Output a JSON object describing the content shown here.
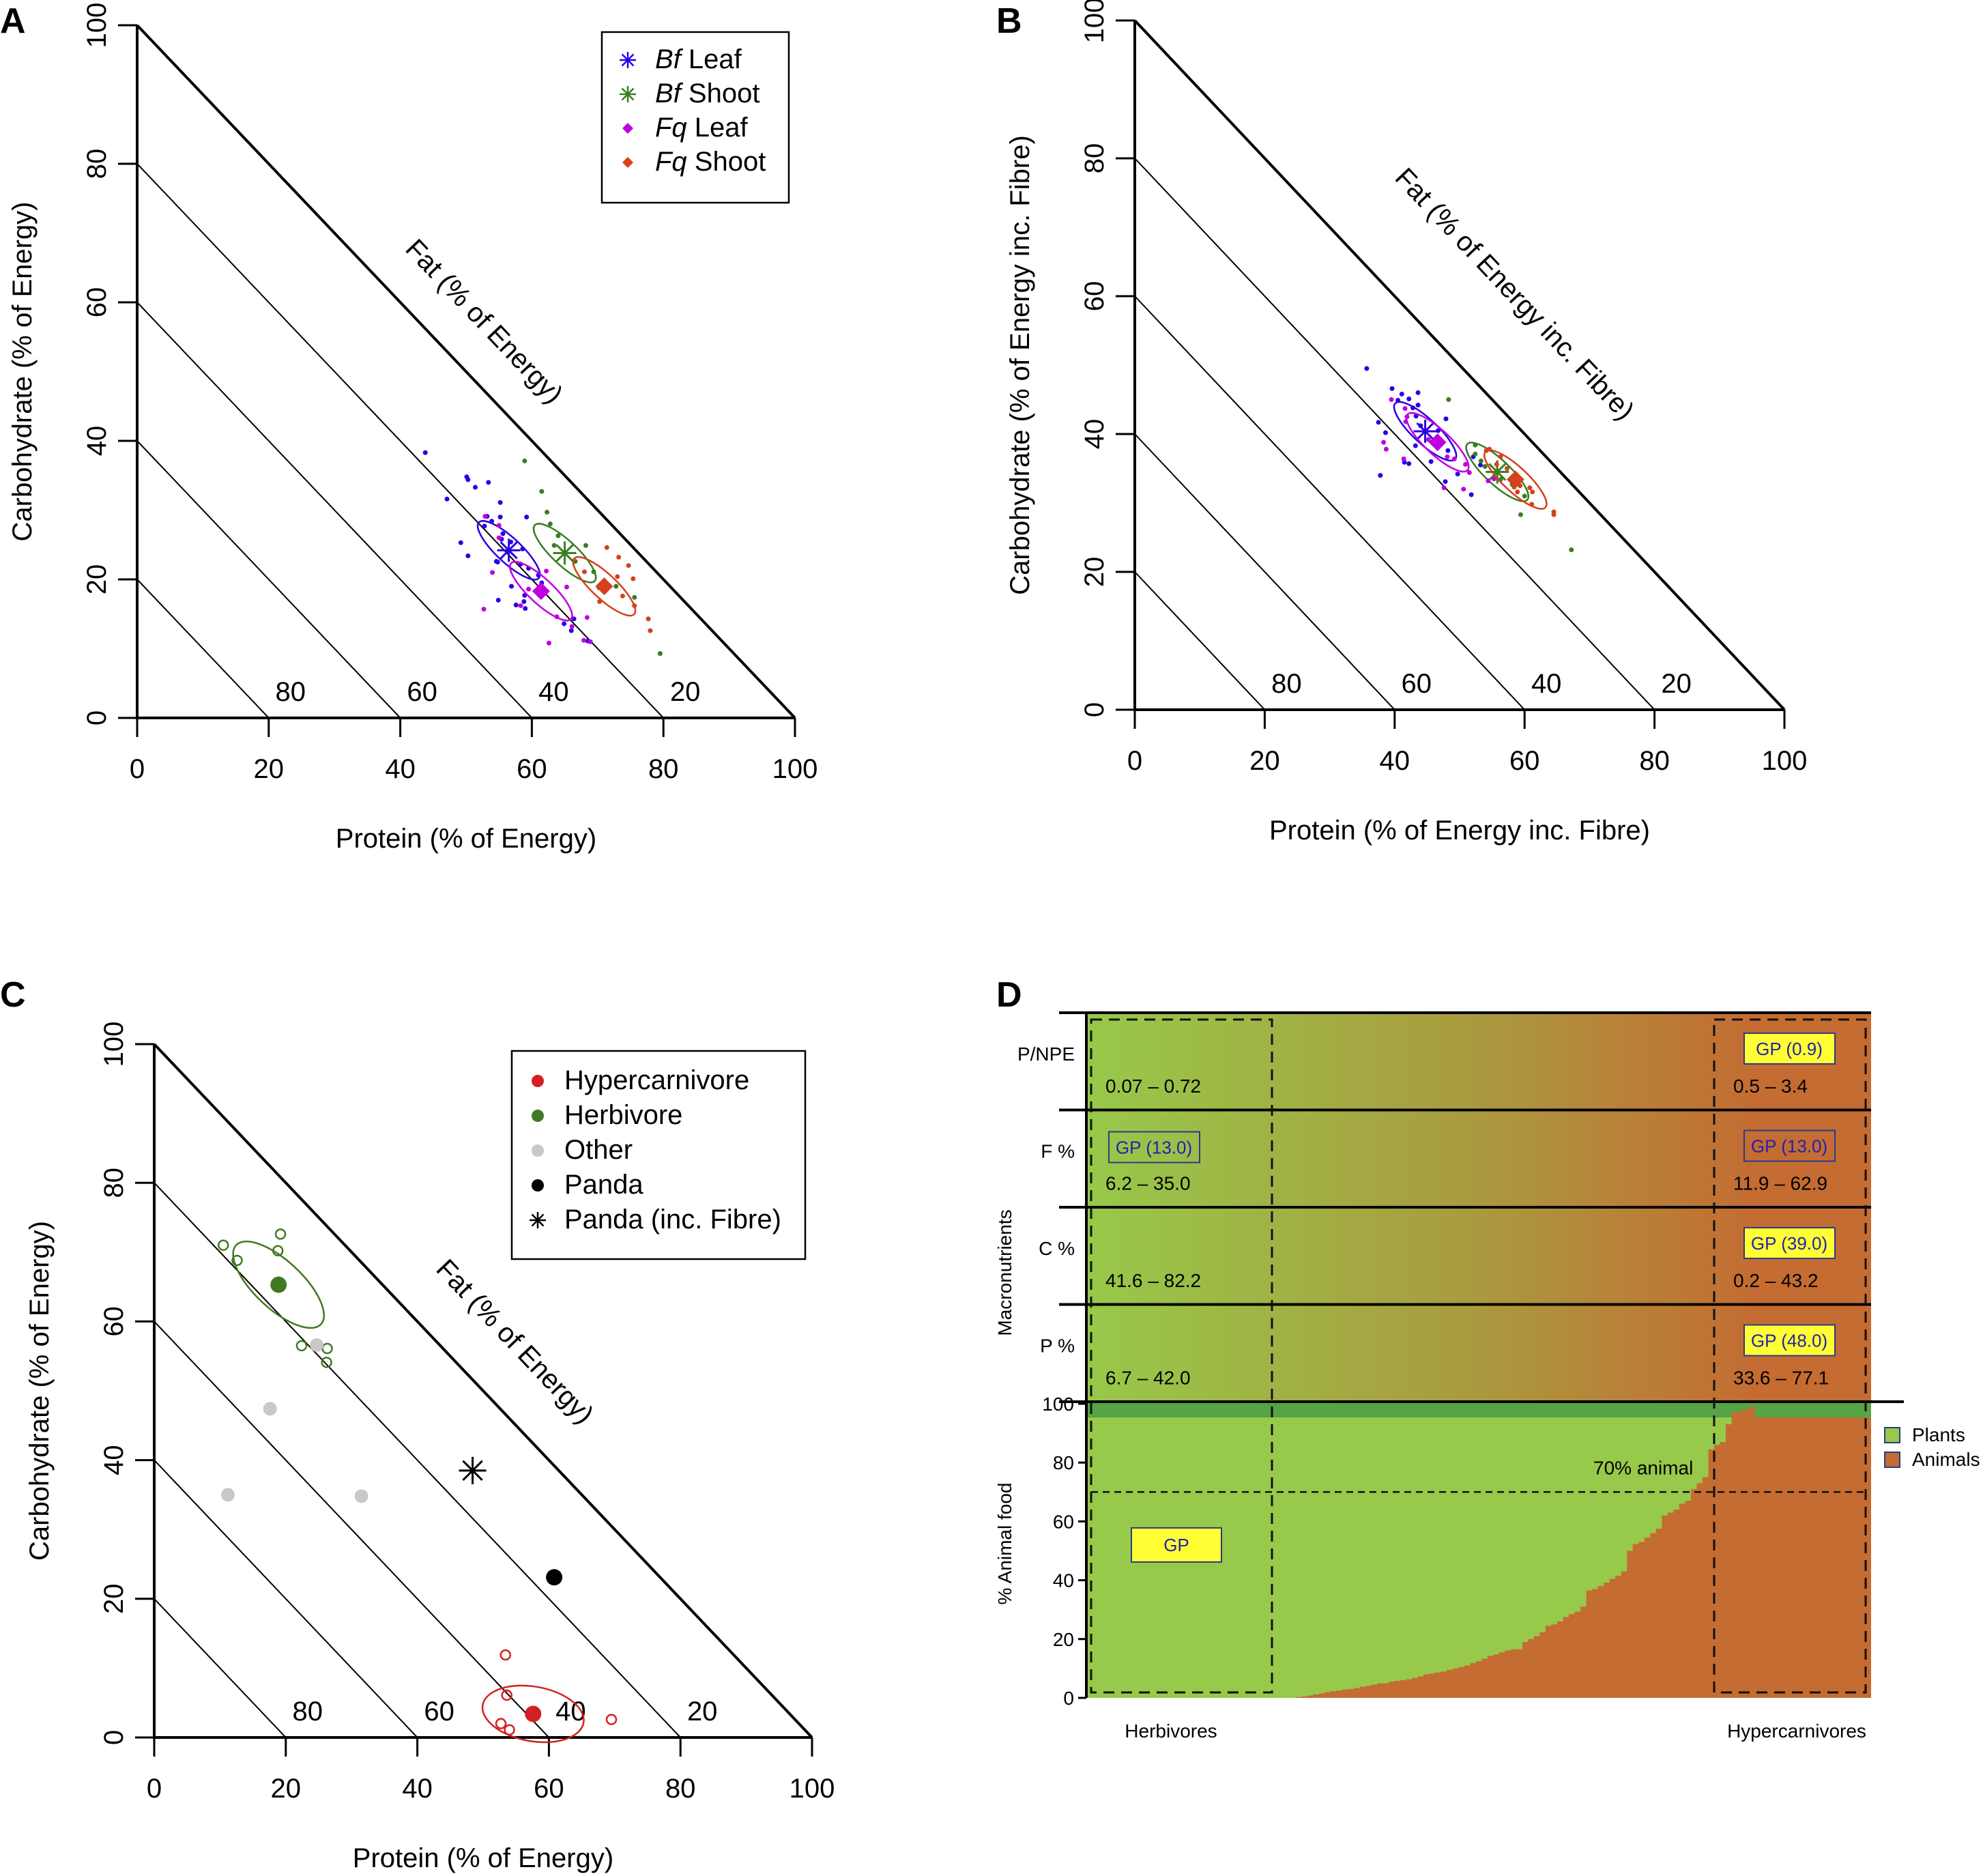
{
  "chart_data": [
    {
      "panel": "A",
      "type": "scatter",
      "subtype": "right-angled mixture triangle",
      "xlabel": "Protein (% of Energy)",
      "ylabel": "Carbohydrate (% of Energy)",
      "diag_label": "Fat (% of Energy)",
      "xlim": [
        0,
        100
      ],
      "ylim": [
        0,
        100
      ],
      "x_ticks": [
        "0",
        "20",
        "40",
        "60",
        "80",
        "100"
      ],
      "y_ticks": [
        "0",
        "20",
        "40",
        "60",
        "80",
        "100"
      ],
      "iso_labels": [
        "80",
        "60",
        "40",
        "20"
      ],
      "legend": {
        "position": "top-right",
        "entries": [
          {
            "italic": "Bf",
            "text": " Leaf",
            "marker": "asterisk",
            "color": "#2a00e6"
          },
          {
            "italic": "Bf",
            "text": " Shoot",
            "marker": "asterisk",
            "color": "#3a7d22"
          },
          {
            "italic": "Fq",
            "text": " Leaf",
            "marker": "diamond",
            "color": "#c000e0"
          },
          {
            "italic": "Fq",
            "text": " Shoot",
            "marker": "diamond",
            "color": "#d6401a"
          }
        ]
      },
      "series": [
        {
          "name": "Bf Leaf",
          "color": "#2a00e6",
          "mean": [
            56.5,
            24.2
          ],
          "points": [
            [
              43.8,
              38.3
            ],
            [
              50.1,
              34.8
            ],
            [
              50.3,
              34.4
            ],
            [
              53.4,
              34.0
            ],
            [
              51.4,
              33.3
            ],
            [
              47.1,
              31.6
            ],
            [
              55.2,
              31.1
            ],
            [
              53.2,
              29.1
            ],
            [
              55.2,
              29.0
            ],
            [
              59.2,
              29.0
            ],
            [
              53.9,
              28.4
            ],
            [
              52.8,
              27.7
            ],
            [
              55.6,
              26.6
            ],
            [
              55.4,
              25.8
            ],
            [
              49.2,
              25.3
            ],
            [
              50.3,
              23.4
            ],
            [
              56.8,
              25.4
            ],
            [
              58.6,
              24.4
            ],
            [
              58.3,
              22.2
            ],
            [
              54.6,
              22.6
            ],
            [
              54.8,
              22.5
            ],
            [
              59.5,
              21.6
            ],
            [
              61.0,
              20.6
            ],
            [
              61.5,
              19.5
            ],
            [
              56.9,
              19.0
            ],
            [
              54.9,
              17.0
            ],
            [
              58.9,
              17.7
            ],
            [
              57.6,
              16.3
            ],
            [
              64.9,
              13.6
            ],
            [
              66.0,
              12.6
            ],
            [
              59.0,
              15.8
            ],
            [
              68.5,
              11.1
            ],
            [
              58.8,
              16.8
            ],
            [
              66.4,
              14.3
            ]
          ]
        },
        {
          "name": "Bf Shoot",
          "color": "#3a7d22",
          "mean": [
            65.0,
            23.8
          ],
          "points": [
            [
              58.9,
              37.1
            ],
            [
              61.5,
              32.7
            ],
            [
              62.3,
              29.7
            ],
            [
              62.8,
              28.0
            ],
            [
              63.4,
              24.9
            ],
            [
              68.2,
              24.9
            ],
            [
              69.4,
              21.1
            ],
            [
              72.8,
              19.0
            ],
            [
              75.6,
              17.4
            ],
            [
              79.5,
              9.3
            ],
            [
              64.0,
              26.3
            ],
            [
              66.6,
              22.6
            ]
          ]
        },
        {
          "name": "Fq Leaf",
          "color": "#c000e0",
          "mean": [
            61.4,
            18.3
          ],
          "points": [
            [
              55.0,
              27.8
            ],
            [
              52.9,
              29.1
            ],
            [
              55.0,
              26.0
            ],
            [
              54.0,
              21.0
            ],
            [
              52.7,
              15.7
            ],
            [
              62.2,
              21.2
            ],
            [
              65.3,
              18.9
            ],
            [
              59.5,
              18.6
            ],
            [
              58.3,
              16.2
            ],
            [
              63.8,
              14.6
            ],
            [
              66.1,
              13.2
            ],
            [
              68.4,
              14.5
            ],
            [
              67.9,
              11.2
            ],
            [
              68.9,
              11.0
            ],
            [
              62.6,
              10.8
            ]
          ]
        },
        {
          "name": "Fq Shoot",
          "color": "#d6401a",
          "mean": [
            71.0,
            19.0
          ],
          "points": [
            [
              71.4,
              24.6
            ],
            [
              73.2,
              23.2
            ],
            [
              74.7,
              22.0
            ],
            [
              68.0,
              21.1
            ],
            [
              75.4,
              20.1
            ],
            [
              70.2,
              18.8
            ],
            [
              73.8,
              17.6
            ],
            [
              70.3,
              16.8
            ],
            [
              75.6,
              16.2
            ],
            [
              77.7,
              14.3
            ],
            [
              78.0,
              12.6
            ],
            [
              73.0,
              20.4
            ]
          ]
        }
      ]
    },
    {
      "panel": "B",
      "type": "scatter",
      "subtype": "right-angled mixture triangle",
      "xlabel": "Protein (% of Energy inc. Fibre)",
      "ylabel": "Carbohydrate (% of Energy inc. Fibre)",
      "diag_label": "Fat (% of Energy inc. Fibre)",
      "xlim": [
        0,
        100
      ],
      "ylim": [
        0,
        100
      ],
      "x_ticks": [
        "0",
        "20",
        "40",
        "60",
        "80",
        "100"
      ],
      "y_ticks": [
        "0",
        "20",
        "40",
        "60",
        "80",
        "100"
      ],
      "iso_labels": [
        "80",
        "60",
        "40",
        "20"
      ],
      "series": [
        {
          "name": "Bf Leaf",
          "color": "#2a00e6",
          "mean": [
            44.7,
            40.4
          ],
          "points": [
            [
              35.7,
              49.5
            ],
            [
              39.6,
              46.6
            ],
            [
              41.1,
              45.8
            ],
            [
              42.2,
              45.1
            ],
            [
              43.6,
              46.0
            ],
            [
              40.5,
              44.9
            ],
            [
              43.6,
              44.2
            ],
            [
              42.8,
              43.8
            ],
            [
              43.3,
              42.6
            ],
            [
              47.9,
              42.2
            ],
            [
              37.5,
              41.7
            ],
            [
              38.6,
              40.2
            ],
            [
              44.0,
              41.2
            ],
            [
              46.7,
              40.5
            ],
            [
              46.9,
              39.0
            ],
            [
              43.2,
              38.3
            ],
            [
              48.2,
              37.6
            ],
            [
              41.5,
              35.9
            ],
            [
              42.2,
              35.7
            ],
            [
              45.6,
              36.0
            ],
            [
              52.1,
              36.7
            ],
            [
              53.2,
              35.5
            ],
            [
              37.8,
              34.0
            ],
            [
              49.7,
              34.2
            ],
            [
              47.8,
              33.1
            ],
            [
              51.8,
              31.2
            ]
          ]
        },
        {
          "name": "Bf Shoot",
          "color": "#3a7d22",
          "mean": [
            55.8,
            34.5
          ],
          "points": [
            [
              48.3,
              45.0
            ],
            [
              52.4,
              38.4
            ],
            [
              52.4,
              37.1
            ],
            [
              53.3,
              36.1
            ],
            [
              53.9,
              35.3
            ],
            [
              56.3,
              33.4
            ],
            [
              60.0,
              31.0
            ],
            [
              58.1,
              32.7
            ],
            [
              59.4,
              28.3
            ],
            [
              67.2,
              23.2
            ]
          ]
        },
        {
          "name": "Fq Leaf",
          "color": "#c000e0",
          "mean": [
            46.6,
            38.8
          ],
          "points": [
            [
              39.5,
              45.0
            ],
            [
              41.6,
              43.7
            ],
            [
              41.9,
              42.5
            ],
            [
              41.7,
              41.8
            ],
            [
              38.3,
              38.8
            ],
            [
              38.7,
              37.8
            ],
            [
              45.2,
              39.2
            ],
            [
              48.1,
              36.7
            ],
            [
              41.4,
              36.4
            ],
            [
              49.2,
              36.4
            ],
            [
              50.9,
              35.6
            ],
            [
              51.5,
              34.4
            ],
            [
              47.6,
              32.2
            ],
            [
              50.6,
              32.0
            ],
            [
              54.4,
              33.2
            ],
            [
              55.3,
              33.5
            ]
          ]
        },
        {
          "name": "Fq Shoot",
          "color": "#d6401a",
          "mean": [
            58.6,
            33.4
          ],
          "points": [
            [
              54.1,
              37.6
            ],
            [
              54.6,
              37.8
            ],
            [
              56.3,
              36.7
            ],
            [
              57.3,
              35.0
            ],
            [
              55.7,
              35.6
            ],
            [
              58.4,
              32.3
            ],
            [
              58.9,
              31.6
            ],
            [
              60.8,
              32.2
            ],
            [
              61.2,
              31.6
            ],
            [
              59.3,
              32.5
            ],
            [
              61.1,
              29.8
            ],
            [
              64.5,
              28.7
            ],
            [
              64.5,
              28.3
            ]
          ]
        }
      ]
    },
    {
      "panel": "C",
      "type": "scatter",
      "subtype": "right-angled mixture triangle",
      "xlabel": "Protein (% of Energy)",
      "ylabel": "Carbohydrate (% of Energy)",
      "diag_label": "Fat (% of Energy)",
      "xlim": [
        0,
        100
      ],
      "ylim": [
        0,
        100
      ],
      "x_ticks": [
        "0",
        "20",
        "40",
        "60",
        "80",
        "100"
      ],
      "y_ticks": [
        "0",
        "20",
        "40",
        "60",
        "80",
        "100"
      ],
      "iso_labels": [
        "80",
        "60",
        "40",
        "20"
      ],
      "legend": {
        "position": "top-right",
        "entries": [
          {
            "text": "Hypercarnivore",
            "marker": "dot",
            "color": "#d42020"
          },
          {
            "text": "Herbivore",
            "marker": "dot",
            "color": "#3f7a22"
          },
          {
            "text": "Other",
            "marker": "dot",
            "color": "#c8c8c8"
          },
          {
            "text": "Panda",
            "marker": "dot",
            "color": "#000000"
          },
          {
            "text": "Panda (inc. Fibre)",
            "marker": "asterisk",
            "color": "#000000"
          }
        ]
      },
      "series": [
        {
          "name": "Hypercarnivore",
          "color": "#d42020",
          "mean": [
            57.6,
            3.4
          ],
          "points": [
            [
              53.4,
              11.9
            ],
            [
              53.6,
              6.1
            ],
            [
              52.7,
              2.0
            ],
            [
              54.0,
              1.1
            ],
            [
              69.5,
              2.6
            ]
          ]
        },
        {
          "name": "Herbivore",
          "color": "#3f7a22",
          "mean": [
            18.9,
            65.3
          ],
          "points": [
            [
              10.5,
              71.0
            ],
            [
              12.6,
              68.8
            ],
            [
              19.2,
              72.6
            ],
            [
              18.8,
              70.2
            ],
            [
              22.4,
              56.5
            ],
            [
              26.3,
              56.1
            ],
            [
              26.2,
              54.1
            ]
          ]
        },
        {
          "name": "Other",
          "color": "#c8c8c8",
          "points": [
            [
              24.7,
              56.6
            ],
            [
              17.6,
              47.4
            ],
            [
              11.2,
              35.0
            ],
            [
              31.5,
              34.8
            ]
          ]
        },
        {
          "name": "Panda",
          "color": "#000000",
          "points": [
            [
              60.8,
              23.1
            ]
          ]
        },
        {
          "name": "Panda (inc. Fibre)",
          "color": "#000000",
          "marker": "asterisk",
          "points": [
            [
              48.4,
              38.5
            ]
          ]
        }
      ]
    },
    {
      "panel": "D",
      "type": "area",
      "subtype": "stepped stacked area with macronutrient summary bands",
      "ylabel_top": "Macronutrients",
      "ylabel_bottom": "% Animal food",
      "ylim": [
        0,
        100
      ],
      "y_ticks": [
        "0",
        "20",
        "40",
        "60",
        "80",
        "100"
      ],
      "x_labels": {
        "left": "Herbivores",
        "right": "Hypercarnivores"
      },
      "threshold": {
        "value": 70,
        "label": "70% animal"
      },
      "legend": {
        "position": "right",
        "entries": [
          {
            "text": "Plants",
            "color": "#97c94a"
          },
          {
            "text": "Animals",
            "color": "#c46c32"
          }
        ]
      },
      "rows": [
        {
          "label": "P/NPE",
          "herbivore_range": "0.07 – 0.72",
          "hypercarnivore_range": "0.5 – 3.4",
          "gp_herbivore": null,
          "gp_hypercarnivore": "GP (0.9)",
          "gp_hyper_style": "yellow"
        },
        {
          "label": "F %",
          "herbivore_range": "6.2 – 35.0",
          "hypercarnivore_range": "11.9 – 62.9",
          "gp_herbivore": "GP (13.0)",
          "gp_hypercarnivore": "GP (13.0)",
          "gp_hyper_style": "outline"
        },
        {
          "label": "C %",
          "herbivore_range": "41.6 – 82.2",
          "hypercarnivore_range": "0.2 – 43.2",
          "gp_herbivore": null,
          "gp_hypercarnivore": "GP (39.0)",
          "gp_hyper_style": "yellow"
        },
        {
          "label": "P %",
          "herbivore_range": "6.7 – 42.0",
          "hypercarnivore_range": "33.6 – 77.1",
          "gp_herbivore": null,
          "gp_hypercarnivore": "GP (48.0)",
          "gp_hyper_style": "yellow"
        }
      ],
      "gp_marker": {
        "label": "GP",
        "animal_food_pct": 52
      },
      "animal_food_steps_pct": [
        0,
        0,
        0,
        0,
        0,
        0,
        0,
        0,
        0,
        0,
        0,
        0,
        0,
        0,
        0,
        0,
        0,
        0,
        0,
        0,
        0,
        0,
        0,
        0,
        0,
        0,
        0,
        0,
        0,
        0,
        0,
        0,
        0,
        0,
        0,
        0,
        0.3,
        0.5,
        0.8,
        1.2,
        1.5,
        2,
        2.3,
        2.5,
        2.8,
        3,
        3.3,
        3.8,
        4.1,
        4.5,
        4.9,
        5,
        5.5,
        5.8,
        6,
        6.3,
        6.8,
        7.3,
        8,
        8.3,
        8.6,
        9,
        9.5,
        10,
        10.5,
        11,
        11.8,
        12.5,
        13.3,
        14.3,
        14.8,
        15.5,
        16.1,
        16.5,
        16.5,
        19,
        20,
        21,
        22.3,
        24.5,
        25,
        26,
        27.5,
        28.5,
        29.3,
        31,
        36.5,
        37,
        38,
        39.2,
        40.5,
        41.5,
        43,
        50,
        52.3,
        53,
        54.5,
        56,
        57.5,
        62,
        63,
        64,
        66,
        67,
        71,
        73,
        75,
        84.5,
        86,
        87,
        93,
        97,
        97.5,
        98,
        99,
        100,
        100,
        100,
        100,
        100,
        100,
        100,
        100,
        100,
        100,
        100,
        100,
        100,
        100,
        100,
        100,
        100,
        100,
        100,
        100
      ]
    }
  ],
  "panel_labels": [
    "A",
    "B",
    "C",
    "D"
  ]
}
